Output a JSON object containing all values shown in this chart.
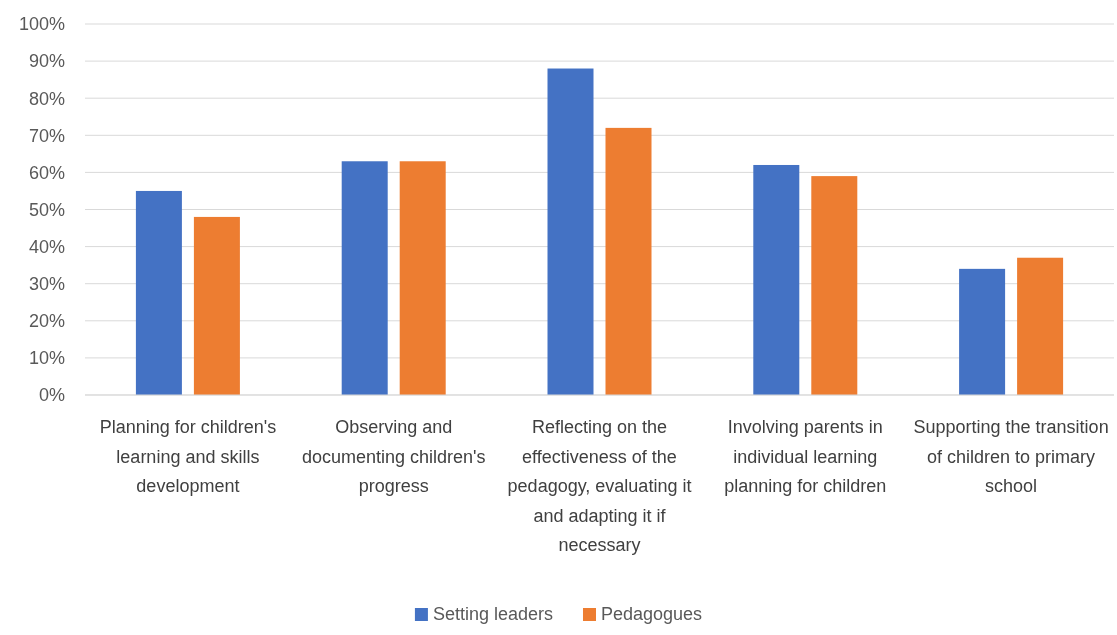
{
  "chart_data": {
    "type": "bar",
    "categories": [
      "Planning for children's learning and skills development",
      "Observing and documenting children's progress",
      "Reflecting on the effectiveness of the pedagogy, evaluating it and adapting it if necessary",
      "Involving parents in individual learning planning for children",
      "Supporting the transition of children to primary school"
    ],
    "series": [
      {
        "name": "Setting leaders",
        "color": "#4472c4",
        "values": [
          55,
          63,
          88,
          62,
          34
        ]
      },
      {
        "name": "Pedagogues",
        "color": "#ed7d31",
        "values": [
          48,
          63,
          72,
          59,
          37
        ]
      }
    ],
    "ylim": [
      0,
      100
    ],
    "yticks": [
      {
        "value": 0,
        "label": "0%"
      },
      {
        "value": 10,
        "label": "10%"
      },
      {
        "value": 20,
        "label": "20%"
      },
      {
        "value": 30,
        "label": "30%"
      },
      {
        "value": 40,
        "label": "40%"
      },
      {
        "value": 50,
        "label": "50%"
      },
      {
        "value": 60,
        "label": "60%"
      },
      {
        "value": 70,
        "label": "70%"
      },
      {
        "value": 80,
        "label": "80%"
      },
      {
        "value": 90,
        "label": "90%"
      },
      {
        "value": 100,
        "label": "100%"
      }
    ],
    "grid": "y",
    "legend": "bottom"
  }
}
